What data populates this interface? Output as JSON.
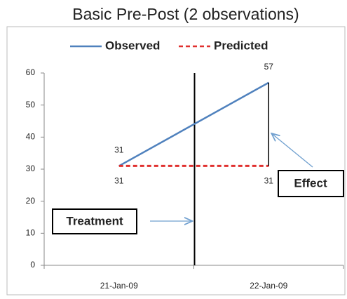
{
  "chart_data": {
    "type": "line",
    "title": "Basic Pre-Post (2 observations)",
    "categories": [
      "21-Jan-09",
      "22-Jan-09"
    ],
    "series": [
      {
        "name": "Observed",
        "color": "#4f81bd",
        "values": [
          31,
          57
        ]
      },
      {
        "name": "Predicted",
        "color": "#e0302f",
        "dashed": true,
        "values": [
          31,
          31
        ]
      }
    ],
    "ylim": [
      0,
      60
    ],
    "yticks": [
      0,
      10,
      20,
      30,
      40,
      50,
      60
    ],
    "grid": false,
    "legend": "top",
    "annotations": [
      "Treatment",
      "Effect"
    ]
  }
}
